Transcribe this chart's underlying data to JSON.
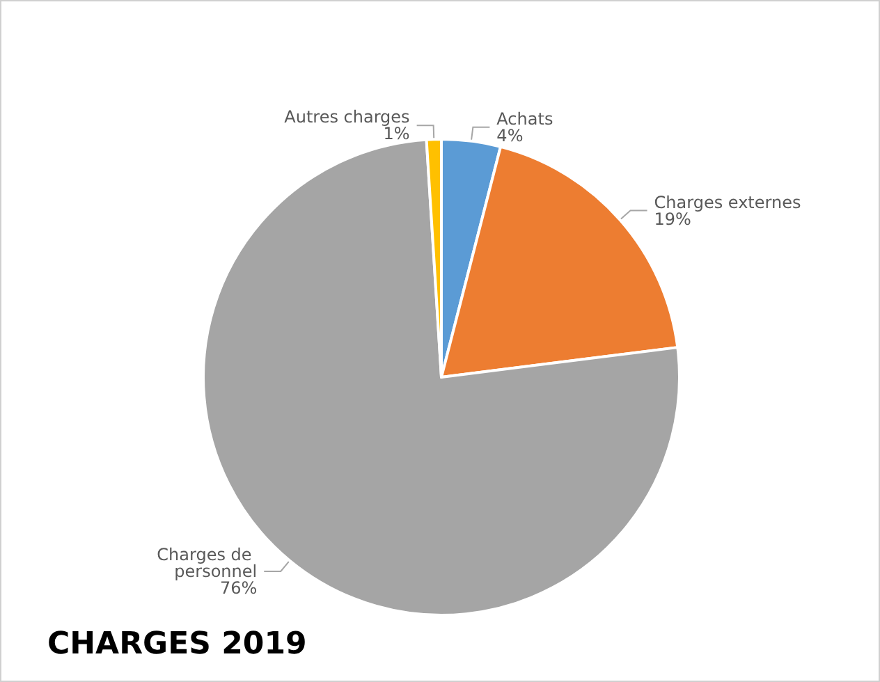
{
  "chart_data": {
    "type": "pie",
    "title": "CHARGES 2019",
    "categories": [
      "Achats",
      "Charges externes",
      "Charges de personnel",
      "Autres charges"
    ],
    "values": [
      4,
      19,
      76,
      1
    ],
    "value_labels": [
      "4%",
      "19%",
      "76%",
      "1%"
    ],
    "colors": [
      "#5b9bd5",
      "#ed7d31",
      "#a5a5a5",
      "#ffc000"
    ],
    "legend": false
  }
}
